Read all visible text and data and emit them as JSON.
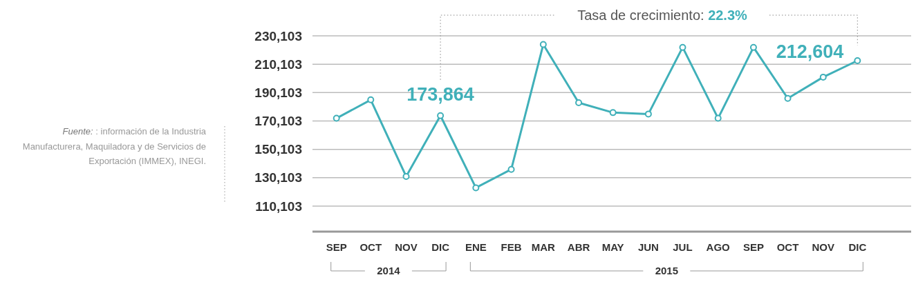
{
  "chart_data": {
    "type": "line",
    "x": [
      "2014-09",
      "2014-10",
      "2014-11",
      "2014-12",
      "2015-01",
      "2015-02",
      "2015-03",
      "2015-04",
      "2015-05",
      "2015-06",
      "2015-07",
      "2015-08",
      "2015-09",
      "2015-10",
      "2015-11",
      "2015-12"
    ],
    "xlim": [
      "2014-08-11",
      "2016-01-17"
    ],
    "xticks": [
      {
        "value": "2014-09",
        "label": "SEP"
      },
      {
        "value": "2014-10",
        "label": "OCT"
      },
      {
        "value": "2014-11",
        "label": "NOV"
      },
      {
        "value": "2014-12",
        "label": "DIC"
      },
      {
        "value": "2015-01",
        "label": "ENE"
      },
      {
        "value": "2015-02",
        "label": "FEB"
      },
      {
        "value": "2015-03",
        "label": "MAR"
      },
      {
        "value": "2015-04",
        "label": "ABR"
      },
      {
        "value": "2015-05",
        "label": "MAY"
      },
      {
        "value": "2015-06",
        "label": "JUN"
      },
      {
        "value": "2015-07",
        "label": "JUL"
      },
      {
        "value": "2015-08",
        "label": "AGO"
      },
      {
        "value": "2015-09",
        "label": "SEP"
      },
      {
        "value": "2015-10",
        "label": "OCT"
      },
      {
        "value": "2015-11",
        "label": "NOV"
      },
      {
        "value": "2015-12",
        "label": "DIC"
      }
    ],
    "series": [
      {
        "color": "#40b0b9",
        "values": [
          172000,
          185000,
          131000,
          173864,
          123000,
          136000,
          224000,
          183000,
          176000,
          175000,
          222000,
          172000,
          222000,
          186000,
          201000,
          212604
        ],
        "value_labels": [
          null,
          null,
          null,
          "173,864",
          null,
          null,
          null,
          null,
          null,
          null,
          null,
          null,
          null,
          null,
          null,
          "212,604"
        ]
      }
    ],
    "ylim": [
      92103,
      230103
    ],
    "yticks": [
      {
        "value": 110103,
        "label": "110,103"
      },
      {
        "value": 130103,
        "label": "130,103"
      },
      {
        "value": 150103,
        "label": "150,103"
      },
      {
        "value": 170103,
        "label": "170,103"
      },
      {
        "value": 190103,
        "label": "190,103"
      },
      {
        "value": 210103,
        "label": "210,103"
      },
      {
        "value": 230103,
        "label": "230,103"
      }
    ],
    "grid": "y",
    "marker": "circle",
    "line_style": "solid",
    "annotations": [
      "Tasa de crecimiento: 22.3%",
      "Fuente: : información de la Industria Manufacturera, Maquiladora y de Servicios de Exportación (IMMEX), INEGI.",
      "2014",
      "2015"
    ]
  }
}
